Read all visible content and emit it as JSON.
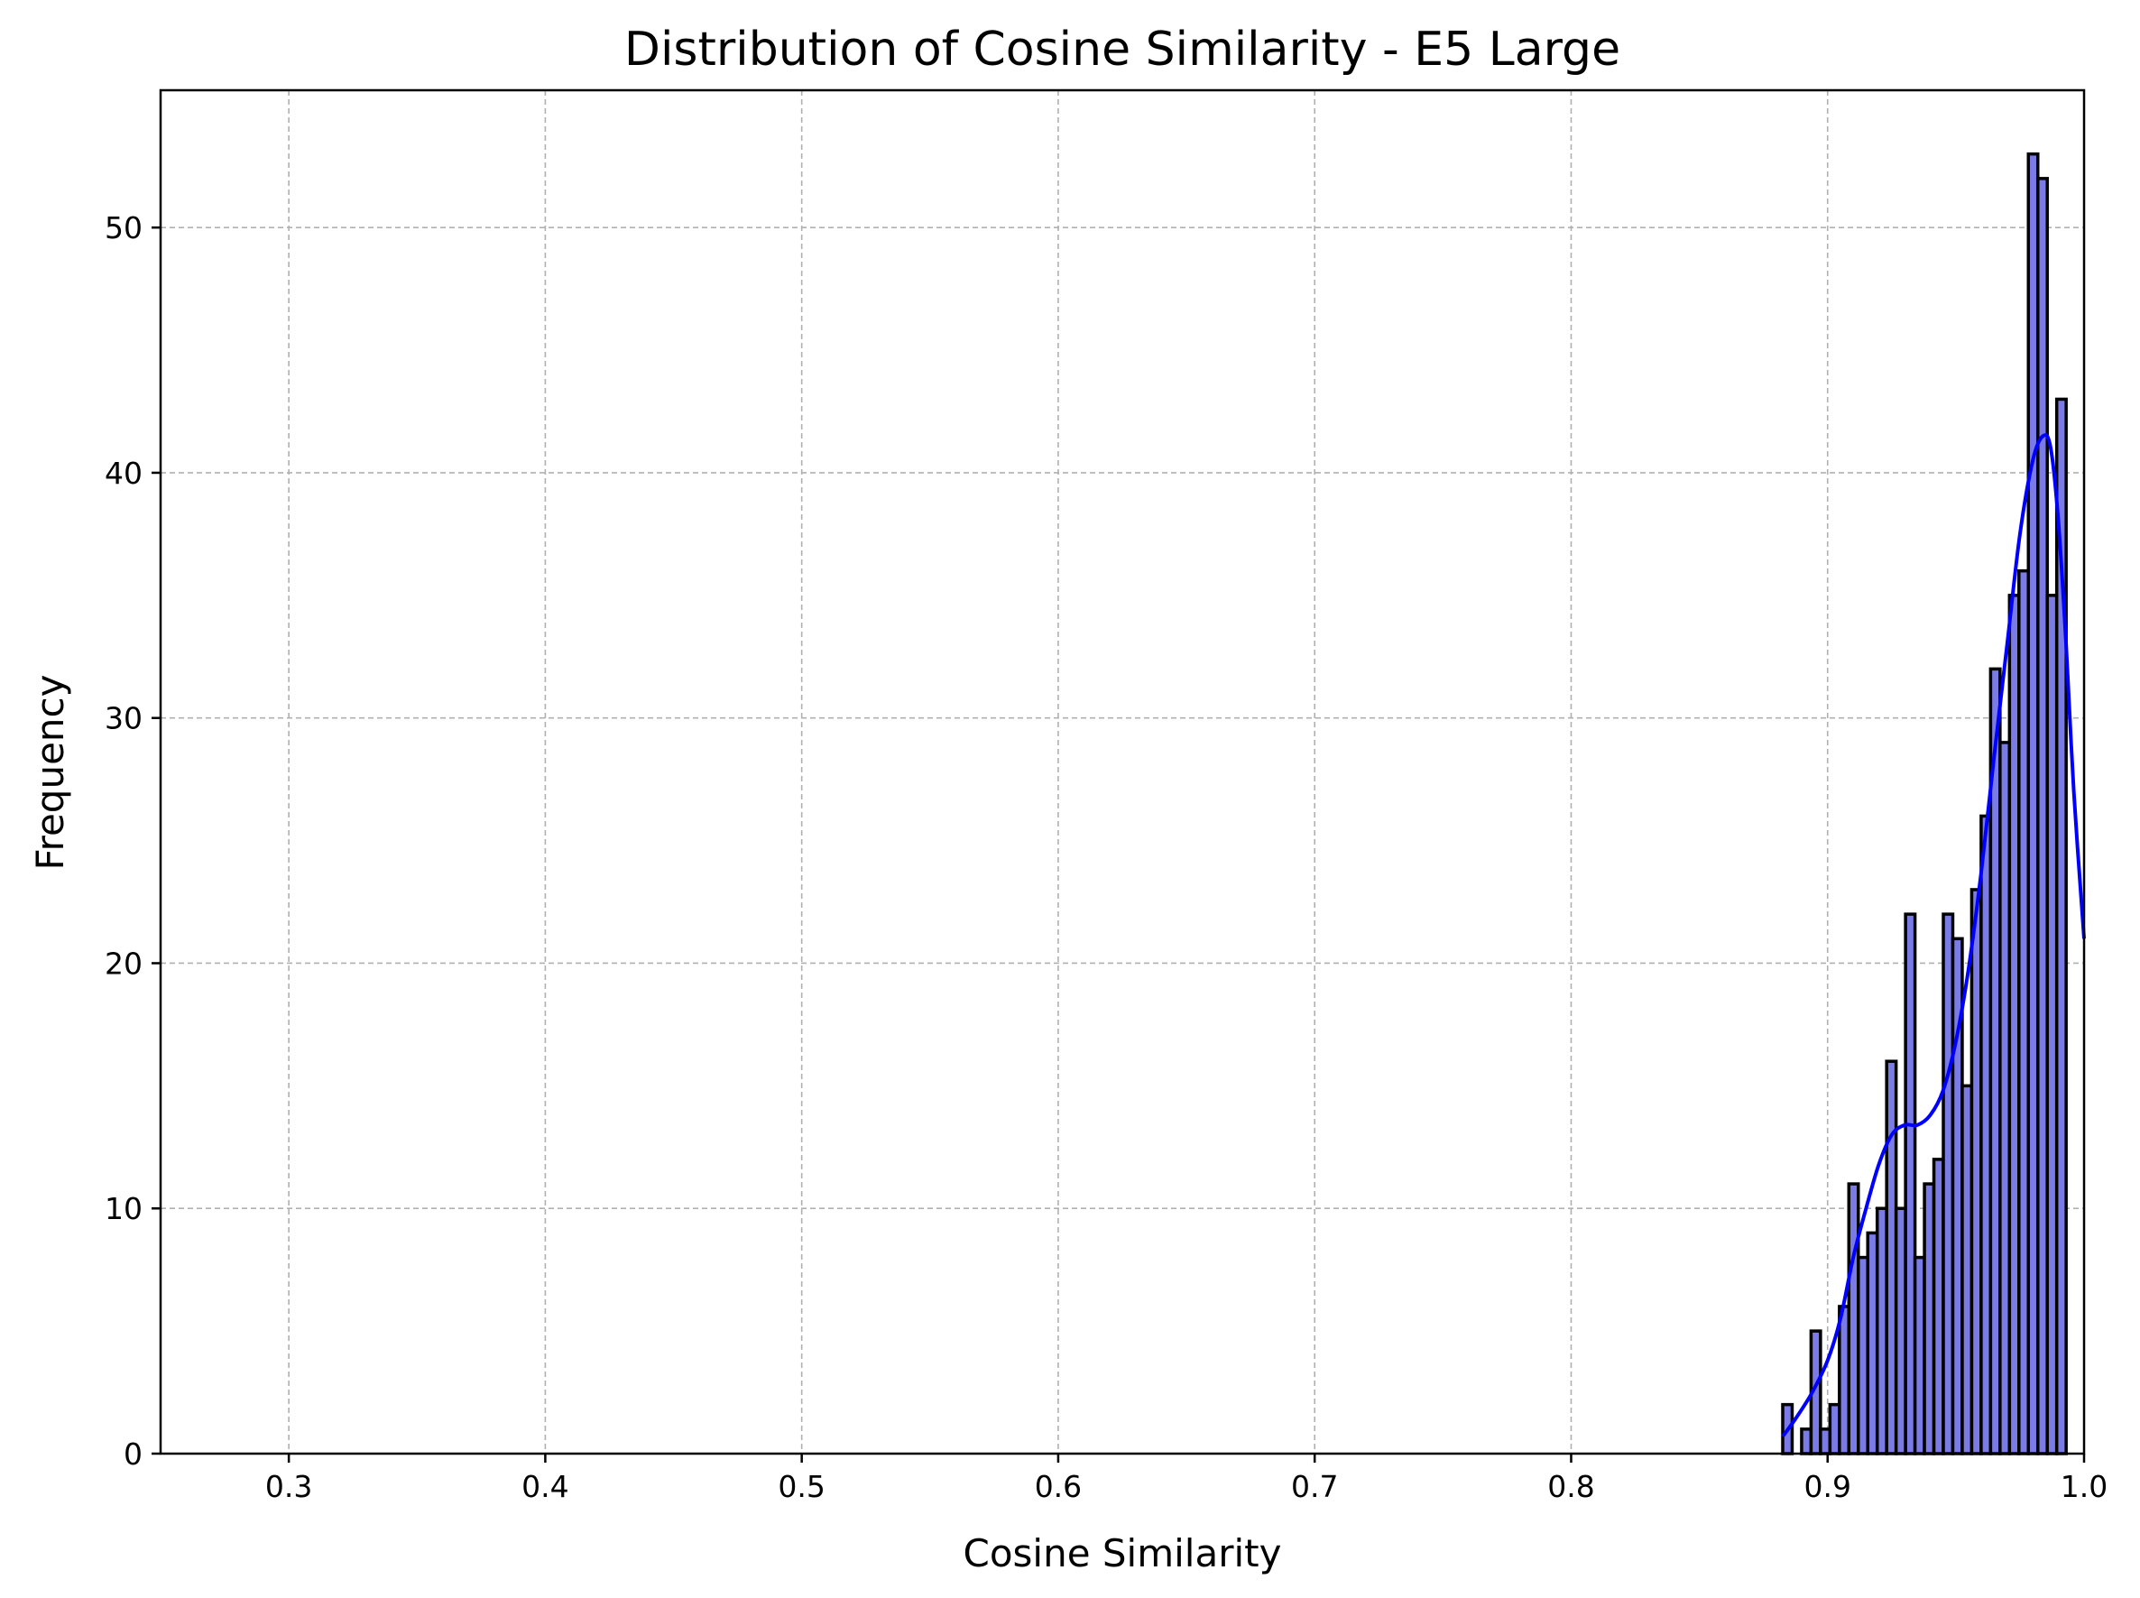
{
  "chart_data": {
    "type": "bar",
    "title": "Distribution of Cosine Similarity - E5 Large",
    "xlabel": "Cosine Similarity",
    "ylabel": "Frequency",
    "xlim": [
      0.25,
      1.0
    ],
    "ylim": [
      0,
      55.6
    ],
    "grid": true,
    "xticks": [
      "0.3",
      "0.4",
      "0.5",
      "0.6",
      "0.7",
      "0.8",
      "0.9",
      "1.0"
    ],
    "xtick_values": [
      0.3,
      0.4,
      0.5,
      0.6,
      0.7,
      0.8,
      0.9,
      1.0
    ],
    "yticks": [
      "0",
      "10",
      "20",
      "30",
      "40",
      "50"
    ],
    "ytick_values": [
      0,
      10,
      20,
      30,
      40,
      50
    ],
    "bin_start": 0.8825,
    "bin_width": 0.003684,
    "counts": [
      2,
      0,
      1,
      5,
      1,
      2,
      6,
      11,
      8,
      9,
      10,
      16,
      10,
      22,
      8,
      11,
      12,
      22,
      21,
      15,
      23,
      26,
      32,
      29,
      35,
      36,
      53,
      52,
      35,
      43
    ],
    "kde_color": "#0000ff",
    "bar_color": "#7b7be6",
    "kde": {
      "x": [
        0.8825,
        0.888,
        0.894,
        0.9,
        0.905,
        0.91,
        0.915,
        0.92,
        0.925,
        0.93,
        0.935,
        0.94,
        0.945,
        0.95,
        0.955,
        0.96,
        0.965,
        0.97,
        0.975,
        0.98,
        0.984,
        0.987,
        0.99,
        0.993,
        0.996,
        1.0
      ],
      "y": [
        0.7,
        1.5,
        2.5,
        3.8,
        5.5,
        8.0,
        10.0,
        11.8,
        13.0,
        13.4,
        13.4,
        13.8,
        14.8,
        16.8,
        19.8,
        23.8,
        28.5,
        33.0,
        37.5,
        40.5,
        41.5,
        41.0,
        38.0,
        33.0,
        27.0,
        21.0
      ]
    }
  }
}
